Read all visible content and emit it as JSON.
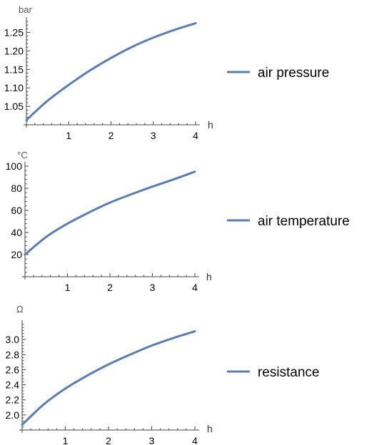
{
  "chart_data": [
    {
      "type": "line",
      "ylabel": "bar",
      "xlabel": "h",
      "xlim": [
        0,
        4
      ],
      "ylim": [
        1.0,
        1.28
      ],
      "xticks": [
        1,
        2,
        3,
        4
      ],
      "yticks": [
        1.05,
        1.1,
        1.15,
        1.2,
        1.25
      ],
      "ytick_labels": [
        "1.05",
        "1.10",
        "1.15",
        "1.20",
        "1.25"
      ],
      "grid": false,
      "legend_position": "right",
      "series": [
        {
          "name": "air pressure",
          "color": "#5b7db1",
          "x": [
            0,
            0.5,
            1,
            1.5,
            2,
            2.5,
            3,
            3.5,
            4
          ],
          "y": [
            1.013,
            1.065,
            1.108,
            1.147,
            1.181,
            1.211,
            1.236,
            1.257,
            1.275
          ]
        }
      ]
    },
    {
      "type": "line",
      "ylabel": "°C",
      "xlabel": "h",
      "xlim": [
        0,
        4
      ],
      "ylim": [
        0,
        100
      ],
      "xticks": [
        1,
        2,
        3,
        4
      ],
      "yticks": [
        20,
        40,
        60,
        80,
        100
      ],
      "ytick_labels": [
        "20",
        "40",
        "60",
        "80",
        "100"
      ],
      "grid": false,
      "legend_position": "right",
      "series": [
        {
          "name": "air temperature",
          "color": "#5b7db1",
          "x": [
            0,
            0.5,
            1,
            1.5,
            2,
            2.5,
            3,
            3.5,
            4
          ],
          "y": [
            20,
            36,
            48,
            58,
            67,
            74.5,
            81.5,
            88,
            95
          ]
        }
      ]
    },
    {
      "type": "line",
      "ylabel": "Ω",
      "xlabel": "h",
      "xlim": [
        0,
        4
      ],
      "ylim": [
        1.8,
        3.2
      ],
      "xticks": [
        1,
        2,
        3,
        4
      ],
      "yticks": [
        2.0,
        2.2,
        2.4,
        2.6,
        2.8,
        3.0
      ],
      "ytick_labels": [
        "2.0",
        "2.2",
        "2.4",
        "2.6",
        "2.8",
        "3.0"
      ],
      "grid": false,
      "legend_position": "right",
      "series": [
        {
          "name": "resistance",
          "color": "#5b7db1",
          "x": [
            0,
            0.5,
            1,
            1.5,
            2,
            2.5,
            3,
            3.5,
            4
          ],
          "y": [
            1.87,
            2.14,
            2.35,
            2.52,
            2.67,
            2.8,
            2.92,
            3.02,
            3.11
          ]
        }
      ]
    }
  ]
}
